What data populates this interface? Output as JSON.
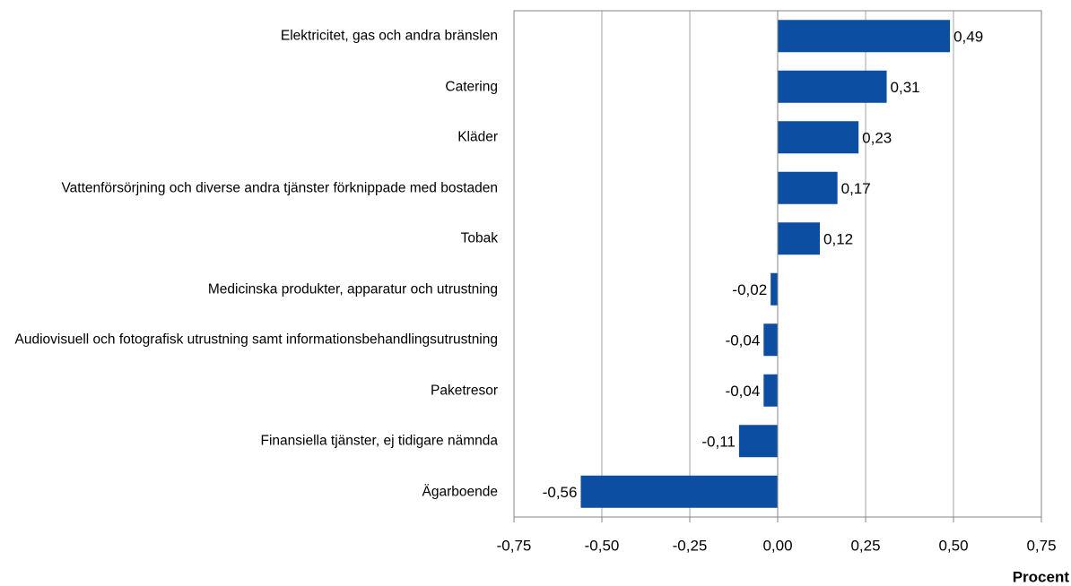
{
  "chart_data": {
    "type": "bar",
    "orientation": "horizontal",
    "categories": [
      "Elektricitet, gas och andra bränslen",
      "Catering",
      "Kläder",
      "Vattenförsörjning och diverse andra tjänster förknippade med bostaden",
      "Tobak",
      "Medicinska produkter, apparatur och utrustning",
      "Audiovisuell och fotografisk utrustning samt informationsbehandlingsutrustning",
      "Paketresor",
      "Finansiella tjänster, ej tidigare nämnda",
      "Ägarboende"
    ],
    "values": [
      0.49,
      0.31,
      0.23,
      0.17,
      0.12,
      -0.02,
      -0.04,
      -0.04,
      -0.11,
      -0.56
    ],
    "value_labels": [
      "0,49",
      "0,31",
      "0,23",
      "0,17",
      "0,12",
      "-0,02",
      "-0,04",
      "-0,04",
      "-0,11",
      "-0,56"
    ],
    "color": "#0b4ea2",
    "xlabel": "Procent",
    "xlim": [
      -0.75,
      0.75
    ],
    "xticks": [
      {
        "value": -0.75,
        "label": "-0,75"
      },
      {
        "value": -0.5,
        "label": "-0,50"
      },
      {
        "value": -0.25,
        "label": "-0,25"
      },
      {
        "value": 0,
        "label": "0,00"
      },
      {
        "value": 0.25,
        "label": "0,25"
      },
      {
        "value": 0.5,
        "label": "0,50"
      },
      {
        "value": 0.75,
        "label": "0,75"
      }
    ],
    "grid": true
  }
}
